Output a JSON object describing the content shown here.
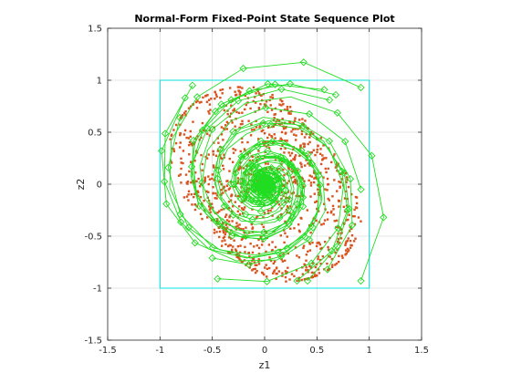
{
  "chart_data": {
    "type": "scatter",
    "title": "Normal-Form Fixed-Point State Sequence Plot",
    "xlabel": "z1",
    "ylabel": "z2",
    "xlim": [
      -1.5,
      1.5
    ],
    "ylim": [
      -1.5,
      1.5
    ],
    "xticks": [
      -1.5,
      -1,
      -0.5,
      0,
      0.5,
      1,
      1.5
    ],
    "yticks": [
      -1.5,
      -1,
      -0.5,
      0,
      0.5,
      1,
      1.5
    ],
    "xtick_labels": [
      "-1.5",
      "-1",
      "-0.5",
      "0",
      "0.5",
      "1",
      "1.5"
    ],
    "ytick_labels": [
      "-1.5",
      "-1",
      "-0.5",
      "0",
      "0.5",
      "1",
      "1.5"
    ],
    "grid": true,
    "box": {
      "x": [
        -1,
        1
      ],
      "y": [
        -1,
        1
      ],
      "color": "#00e0e0"
    },
    "scatter_color": "#d9531e",
    "trajectory_color": "#22dd22",
    "trajectory_starts": [
      [
        0.92,
        0.93
      ],
      [
        0.57,
        0.91
      ],
      [
        0.68,
        0.86
      ],
      [
        0.62,
        0.81
      ],
      [
        -0.69,
        0.95
      ],
      [
        -0.76,
        0.83
      ],
      [
        -0.81,
        0.64
      ],
      [
        0.92,
        -0.05
      ],
      [
        0.92,
        -0.93
      ],
      [
        0.6,
        -0.82
      ],
      [
        0.41,
        -0.93
      ],
      [
        0.31,
        -0.93
      ],
      [
        -0.45,
        -0.91
      ],
      [
        -0.5,
        -0.71
      ],
      [
        0.1,
        0.96
      ]
    ]
  }
}
